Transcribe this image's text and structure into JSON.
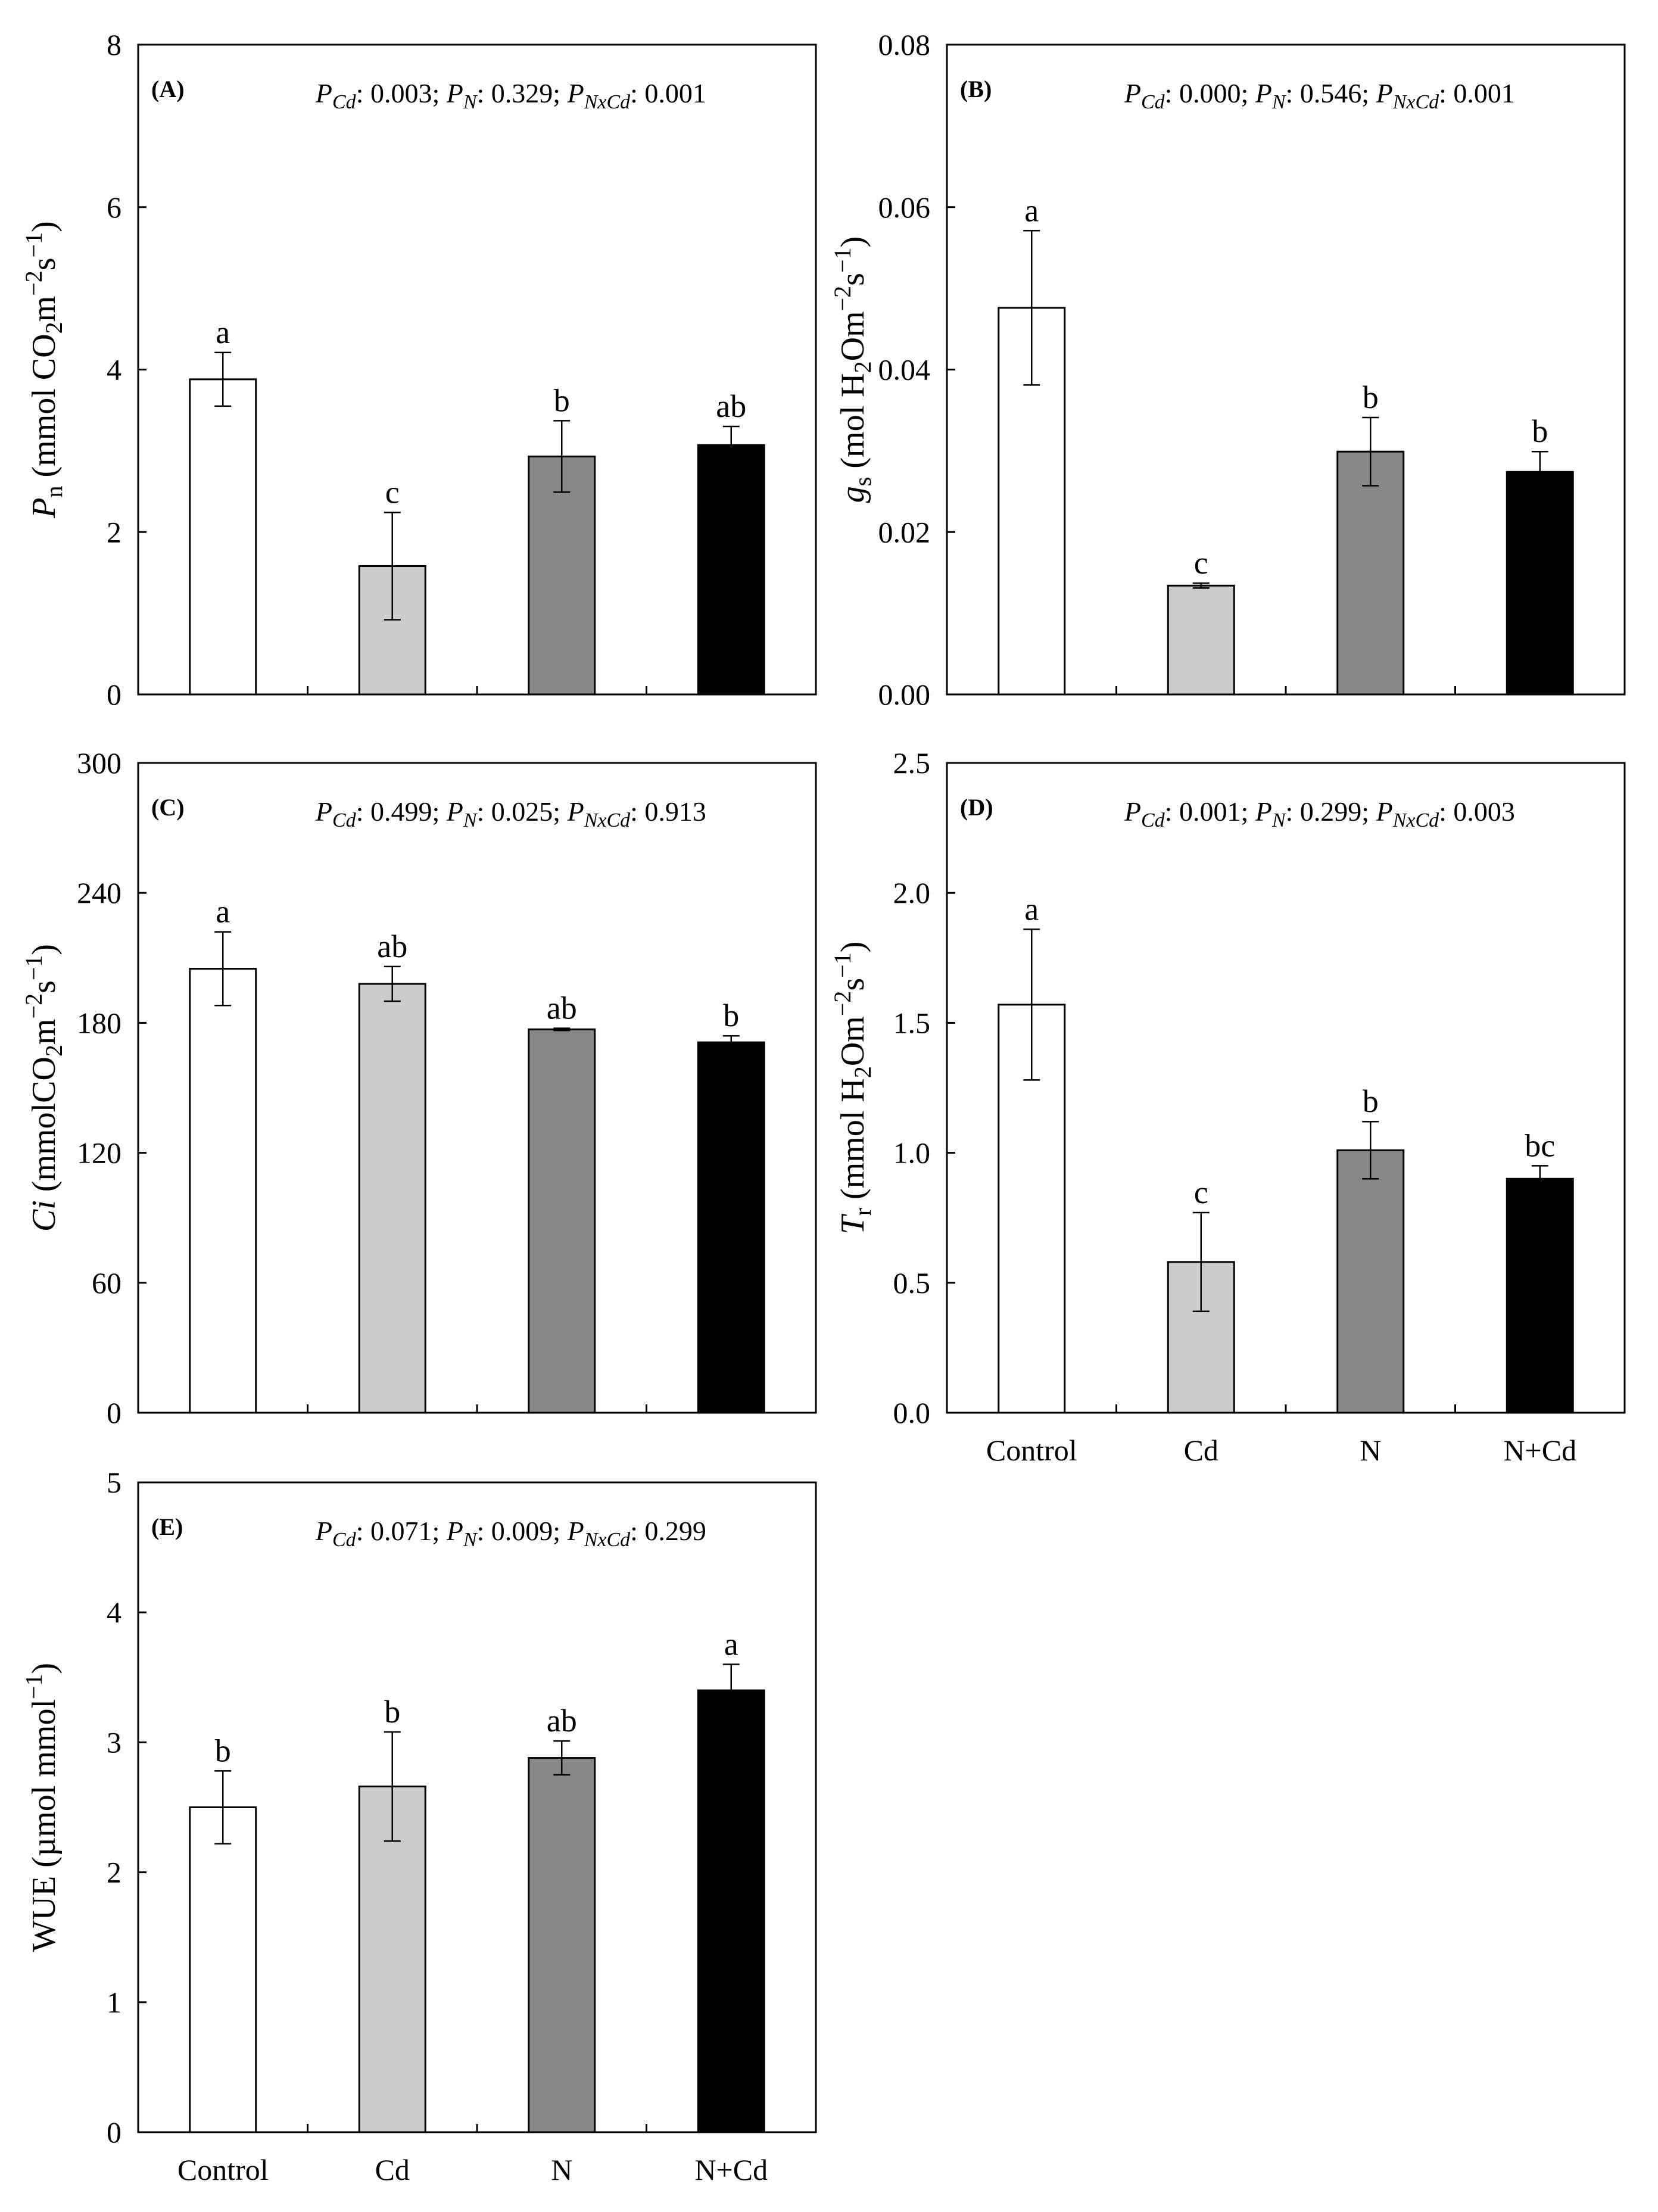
{
  "chart_data": [
    {
      "id": "A",
      "type": "bar",
      "panel_label": "(A)",
      "categories": [
        "Control",
        "Cd",
        "N",
        "N+Cd"
      ],
      "show_category_labels": false,
      "values": [
        3.88,
        1.58,
        2.93,
        3.07
      ],
      "errors": [
        0.33,
        0.66,
        0.44,
        0.23
      ],
      "letters": [
        "a",
        "c",
        "b",
        "ab"
      ],
      "ylim": [
        0,
        8
      ],
      "yticks": [
        0,
        2,
        4,
        6,
        8
      ],
      "tick_decimals": 0,
      "ylabel": {
        "main": "P",
        "sub": "n",
        "unit_pre": " (mmol CO",
        "sub2": "2",
        "unit_mid": "m",
        "sup1": "−2",
        "unit_mid2": "s",
        "sup2": "−1",
        "unit_post": ")"
      },
      "pstats": {
        "cd_label": "Cd",
        "cd": "0.003",
        "n_label": "N",
        "n": "0.329",
        "nxcd_label": "NxCd",
        "nxcd": "0.001"
      }
    },
    {
      "id": "B",
      "type": "bar",
      "panel_label": "(B)",
      "categories": [
        "Control",
        "Cd",
        "N",
        "N+Cd"
      ],
      "show_category_labels": false,
      "values": [
        0.0476,
        0.0134,
        0.0299,
        0.0274
      ],
      "errors": [
        0.0095,
        0.0003,
        0.0042,
        0.0025
      ],
      "letters": [
        "a",
        "c",
        "b",
        "b"
      ],
      "ylim": [
        0,
        0.08
      ],
      "yticks": [
        0,
        0.02,
        0.04,
        0.06,
        0.08
      ],
      "tick_decimals": 2,
      "ylabel": {
        "main": "g",
        "sub": "s",
        "unit_pre": " (mol H",
        "sub2": "2",
        "unit_mid": "Om",
        "sup1": "−2",
        "unit_mid2": "s",
        "sup2": "−1",
        "unit_post": ")"
      },
      "pstats": {
        "cd_label": "Cd",
        "cd": "0.000",
        "n_label": "N",
        "n": "0.546",
        "nxcd_label": "NxCd",
        "nxcd": "0.001"
      }
    },
    {
      "id": "C",
      "type": "bar",
      "panel_label": "(C)",
      "categories": [
        "Control",
        "Cd",
        "N",
        "N+Cd"
      ],
      "show_category_labels": false,
      "values": [
        205,
        198,
        177,
        171
      ],
      "errors": [
        17,
        8,
        0.5,
        3
      ],
      "letters": [
        "a",
        "ab",
        "ab",
        "b"
      ],
      "ylim": [
        0,
        300
      ],
      "yticks": [
        0,
        60,
        120,
        180,
        240,
        300
      ],
      "tick_decimals": 0,
      "ylabel": {
        "main": "Ci",
        "sub": "",
        "unit_pre": " (mmolCO",
        "sub2": "2",
        "unit_mid": "m",
        "sup1": "−2",
        "unit_mid2": "s",
        "sup2": "−1",
        "unit_post": ")"
      },
      "pstats": {
        "cd_label": "Cd",
        "cd": "0.499",
        "n_label": "N",
        "n": "0.025",
        "nxcd_label": "NxCd",
        "nxcd": "0.913"
      }
    },
    {
      "id": "D",
      "type": "bar",
      "panel_label": "(D)",
      "categories": [
        "Control",
        "Cd",
        "N",
        "N+Cd"
      ],
      "show_category_labels": true,
      "values": [
        1.57,
        0.58,
        1.01,
        0.9
      ],
      "errors": [
        0.29,
        0.19,
        0.11,
        0.05
      ],
      "letters": [
        "a",
        "c",
        "b",
        "bc"
      ],
      "ylim": [
        0,
        2.5
      ],
      "yticks": [
        0,
        0.5,
        1,
        1.5,
        2,
        2.5
      ],
      "tick_decimals": 1,
      "ylabel": {
        "main": "T",
        "sub": "r",
        "unit_pre": " (mmol H",
        "sub2": "2",
        "unit_mid": "Om",
        "sup1": "−2",
        "unit_mid2": "s",
        "sup2": "−1",
        "unit_post": ")"
      },
      "pstats": {
        "cd_label": "Cd",
        "cd": "0.001",
        "n_label": "N",
        "n": "0.299",
        "nxcd_label": "NxCd",
        "nxcd": "0.003"
      }
    },
    {
      "id": "E",
      "type": "bar",
      "panel_label": "(E)",
      "categories": [
        "Control",
        "Cd",
        "N",
        "N+Cd"
      ],
      "show_category_labels": true,
      "values": [
        2.5,
        2.66,
        2.88,
        3.4
      ],
      "errors": [
        0.28,
        0.42,
        0.13,
        0.2
      ],
      "letters": [
        "b",
        "b",
        "ab",
        "a"
      ],
      "ylim": [
        0,
        5
      ],
      "yticks": [
        0,
        1,
        2,
        3,
        4,
        5
      ],
      "tick_decimals": 0,
      "ylabel": {
        "main": "WUE",
        "sub": "",
        "unit_pre": " (µmol mmol",
        "sub2": "",
        "unit_mid": "",
        "sup1": "−1",
        "unit_mid2": "",
        "sup2": "",
        "unit_post": ")"
      },
      "pstats": {
        "cd_label": "Cd",
        "cd": "0.071",
        "n_label": "N",
        "n": "0.009",
        "nxcd_label": "NxCd",
        "nxcd": "0.299"
      }
    }
  ],
  "colors": {
    "control": "#ffffff",
    "cd": "#cccccc",
    "n": "#888888",
    "ncd": "#000000"
  }
}
